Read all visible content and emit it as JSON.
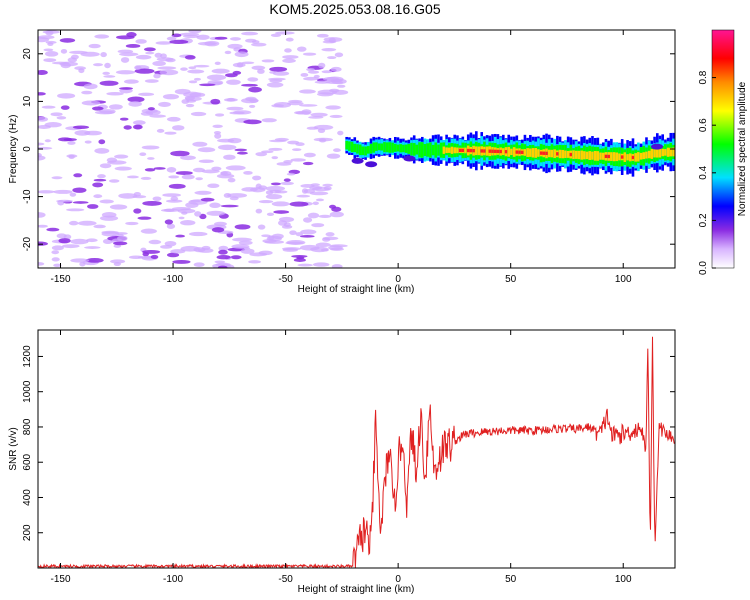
{
  "title": "KOM5.2025.053.08.16.G05",
  "colors": {
    "snr_line": "#e02020",
    "colorbar": [
      "#ffffff",
      "#d8b4ff",
      "#8a2be2",
      "#0000ff",
      "#00e0ff",
      "#00ff00",
      "#ffff00",
      "#ff8c00",
      "#ff0000",
      "#ff1493"
    ]
  },
  "chart_data": [
    {
      "type": "heatmap",
      "xlabel": "Height of straight line (km)",
      "ylabel": "Frequency (Hz)",
      "xlim": [
        -160,
        123
      ],
      "ylim": [
        -25,
        25
      ],
      "xticks": [
        -150,
        -100,
        -50,
        0,
        50,
        100
      ],
      "yticks": [
        -20,
        -10,
        0,
        10,
        20
      ],
      "colorbar": {
        "label": "Normalized spectral amplitude",
        "range": [
          0,
          1
        ],
        "ticks": [
          0.0,
          0.2,
          0.4,
          0.6,
          0.8
        ]
      },
      "noise_region_x": [
        -160,
        -25
      ],
      "ridge": [
        {
          "x": -23,
          "f": 0.8
        },
        {
          "x": -15,
          "f": -0.5
        },
        {
          "x": -10,
          "f": 0.5
        },
        {
          "x": 0,
          "f": 0.2
        },
        {
          "x": 10,
          "f": -0.2
        },
        {
          "x": 30,
          "f": -0.3
        },
        {
          "x": 50,
          "f": -0.6
        },
        {
          "x": 70,
          "f": -1.0
        },
        {
          "x": 90,
          "f": -1.5
        },
        {
          "x": 105,
          "f": -1.8
        },
        {
          "x": 115,
          "f": -0.8
        },
        {
          "x": 123,
          "f": -0.6
        }
      ]
    },
    {
      "type": "line",
      "xlabel": "Height of straight line (km)",
      "ylabel": "SNR (v/v)",
      "xlim": [
        -160,
        123
      ],
      "ylim": [
        0,
        1350
      ],
      "xticks": [
        -150,
        -100,
        -50,
        0,
        50,
        100
      ],
      "yticks": [
        200,
        400,
        600,
        800,
        1000,
        1200
      ],
      "series": [
        {
          "x": [
            -160,
            -20,
            -17,
            -15,
            -12,
            -10,
            -8,
            -6,
            -4,
            -2,
            0,
            2,
            4,
            6,
            8,
            10,
            12,
            14,
            16,
            20,
            25,
            30,
            40,
            50,
            60,
            70,
            80,
            85,
            90,
            93,
            95,
            100,
            105,
            108,
            110,
            111,
            112,
            113,
            114,
            116,
            120,
            123
          ],
          "y": [
            10,
            10,
            150,
            220,
            120,
            820,
            200,
            450,
            700,
            300,
            600,
            750,
            350,
            800,
            500,
            880,
            500,
            920,
            550,
            680,
            720,
            760,
            775,
            780,
            780,
            790,
            790,
            800,
            760,
            870,
            750,
            760,
            780,
            800,
            650,
            1290,
            100,
            1330,
            120,
            800,
            750,
            740
          ]
        }
      ]
    }
  ]
}
